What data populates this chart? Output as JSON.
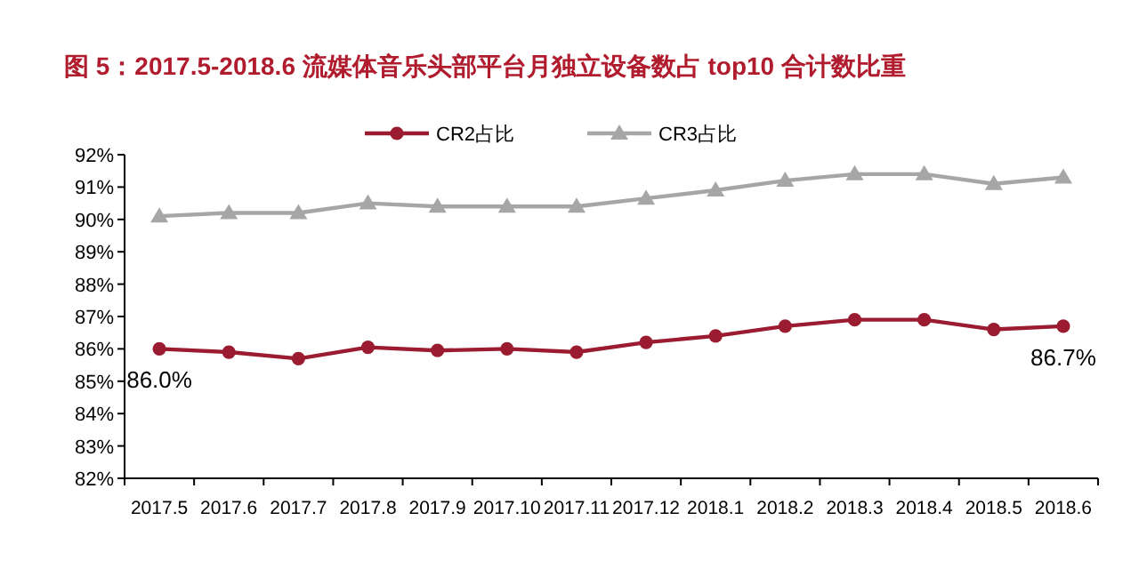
{
  "chart_data": {
    "type": "line",
    "title": "图 5：2017.5-2018.6 流媒体音乐头部平台月独立设备数占 top10 合计数比重",
    "categories": [
      "2017.5",
      "2017.6",
      "2017.7",
      "2017.8",
      "2017.9",
      "2017.10",
      "2017.11",
      "2017.12",
      "2018.1",
      "2018.2",
      "2018.3",
      "2018.4",
      "2018.5",
      "2018.6"
    ],
    "series": [
      {
        "name": "CR2占比",
        "color": "#9b1b30",
        "marker": "circle",
        "values": [
          86.0,
          85.9,
          85.7,
          86.05,
          85.95,
          86.0,
          85.9,
          86.2,
          86.4,
          86.7,
          86.9,
          86.9,
          86.6,
          86.7
        ],
        "value_labels": [
          "86.0%",
          null,
          null,
          null,
          null,
          null,
          null,
          null,
          null,
          null,
          null,
          null,
          null,
          "86.7%"
        ]
      },
      {
        "name": "CR3占比",
        "color": "#a6a6a6",
        "marker": "triangle",
        "values": [
          90.1,
          90.2,
          90.2,
          90.5,
          90.4,
          90.4,
          90.4,
          90.65,
          90.9,
          91.2,
          91.4,
          91.4,
          91.1,
          91.3
        ]
      }
    ],
    "ylim": [
      82,
      92
    ],
    "yticks": [
      {
        "value": 82,
        "label": "82%"
      },
      {
        "value": 83,
        "label": "83%"
      },
      {
        "value": 84,
        "label": "84%"
      },
      {
        "value": 85,
        "label": "85%"
      },
      {
        "value": 86,
        "label": "86%"
      },
      {
        "value": 87,
        "label": "87%"
      },
      {
        "value": 88,
        "label": "88%"
      },
      {
        "value": 89,
        "label": "89%"
      },
      {
        "value": 90,
        "label": "90%"
      },
      {
        "value": 91,
        "label": "91%"
      },
      {
        "value": 92,
        "label": "92%"
      }
    ],
    "legend": "top",
    "grid": false
  }
}
